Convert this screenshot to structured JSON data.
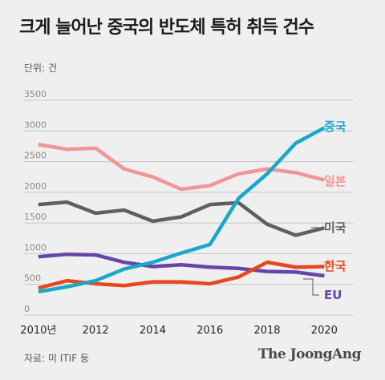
{
  "title": "크게 늘어난 중국의 반도체 특허 취득 건수",
  "unit": "단위: 건",
  "source": "자료: 미 ITIF 등",
  "brand": "The JoongAng",
  "colors": {
    "background": "#efefef",
    "grid": "#c4c4c4"
  },
  "chart_data": {
    "type": "line",
    "title": "크게 늘어난 중국의 반도체 특허 취득 건수",
    "ylabel": "단위: 건",
    "ylim": [
      0,
      3500
    ],
    "yticks": [
      0,
      500,
      1000,
      1500,
      2000,
      2500,
      3000,
      3500
    ],
    "xlim": [
      2009.5,
      2021
    ],
    "xtick_values": [
      2010,
      2012,
      2014,
      2016,
      2018,
      2020
    ],
    "xtick_labels": [
      "2010년",
      "2012",
      "2014",
      "2016",
      "2018",
      "2020"
    ],
    "grid": true,
    "legend": "labels at line ends",
    "x": [
      2010,
      2011,
      2012,
      2013,
      2014,
      2015,
      2016,
      2017,
      2018,
      2019,
      2020
    ],
    "series": [
      {
        "name": "중국",
        "color": "#1aa8c8",
        "values": [
          380,
          460,
          560,
          750,
          860,
          1010,
          1150,
          1900,
          2300,
          2800,
          3050
        ]
      },
      {
        "name": "일본",
        "color": "#f29595",
        "values": [
          2780,
          2700,
          2720,
          2380,
          2250,
          2050,
          2110,
          2300,
          2380,
          2320,
          2200
        ]
      },
      {
        "name": "미국",
        "color": "#5f5f5f",
        "values": [
          1800,
          1840,
          1660,
          1710,
          1530,
          1600,
          1800,
          1830,
          1480,
          1300,
          1420
        ]
      },
      {
        "name": "한국",
        "color": "#e8461e",
        "values": [
          440,
          560,
          510,
          480,
          540,
          540,
          510,
          620,
          860,
          780,
          790
        ]
      },
      {
        "name": "EU",
        "color": "#6545a8",
        "values": [
          950,
          990,
          980,
          860,
          790,
          820,
          780,
          760,
          710,
          700,
          640
        ]
      }
    ]
  }
}
